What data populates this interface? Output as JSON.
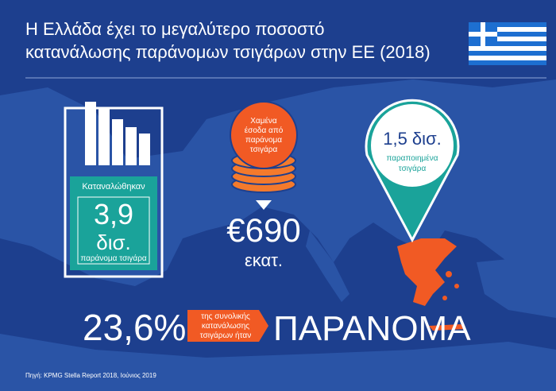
{
  "header": {
    "title_lines": [
      "Η Ελλάδα έχει το μεγαλύτερο ποσοστό",
      "κατανάλωσης παράνομων τσιγάρων στην ΕΕ (2018)"
    ]
  },
  "pack": {
    "caption": "Καταναλώθηκαν",
    "amount": "3,9",
    "unit": "δισ.",
    "label": "παράνομα τσιγάρα"
  },
  "coins": {
    "caption_lines": [
      "Χαμένα",
      "έσοδα από",
      "παράνομα",
      "τσιγάρα"
    ],
    "amount": "€690",
    "unit": "εκατ."
  },
  "pin": {
    "amount": "1,5 δισ.",
    "label_lines": [
      "παραποιημένα",
      "τσιγάρα"
    ]
  },
  "footer_stat": {
    "percent": "23,6%",
    "caption_lines": [
      "της συνολικής",
      "κατανάλωσης",
      "τσιγάρων ήταν"
    ],
    "word": "ΠΑΡΑΝΟΜΑ"
  },
  "source": "Πηγή: KPMG Stella Report 2018, Ιούνιος 2019"
}
